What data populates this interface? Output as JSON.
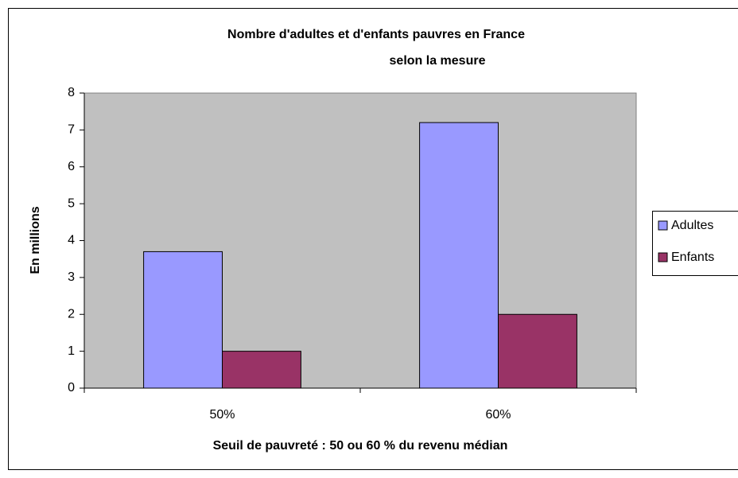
{
  "chart_data": {
    "type": "bar",
    "title": [
      "Nombre d'adultes et d'enfants pauvres en France",
      "selon la mesure"
    ],
    "x_label": "Seuil de pauvreté : 50 ou 60 % du revenu médian",
    "y_label": "En millions",
    "categories": [
      "50%",
      "60%"
    ],
    "series": [
      {
        "name": "Adultes",
        "color": "#9999ff",
        "values": [
          3.7,
          7.2
        ]
      },
      {
        "name": "Enfants",
        "color": "#993366",
        "values": [
          1,
          2
        ]
      }
    ],
    "ylim": [
      0,
      8
    ],
    "yticks": [
      0,
      1,
      2,
      3,
      4,
      5,
      6,
      7,
      8
    ],
    "legend": "right"
  }
}
